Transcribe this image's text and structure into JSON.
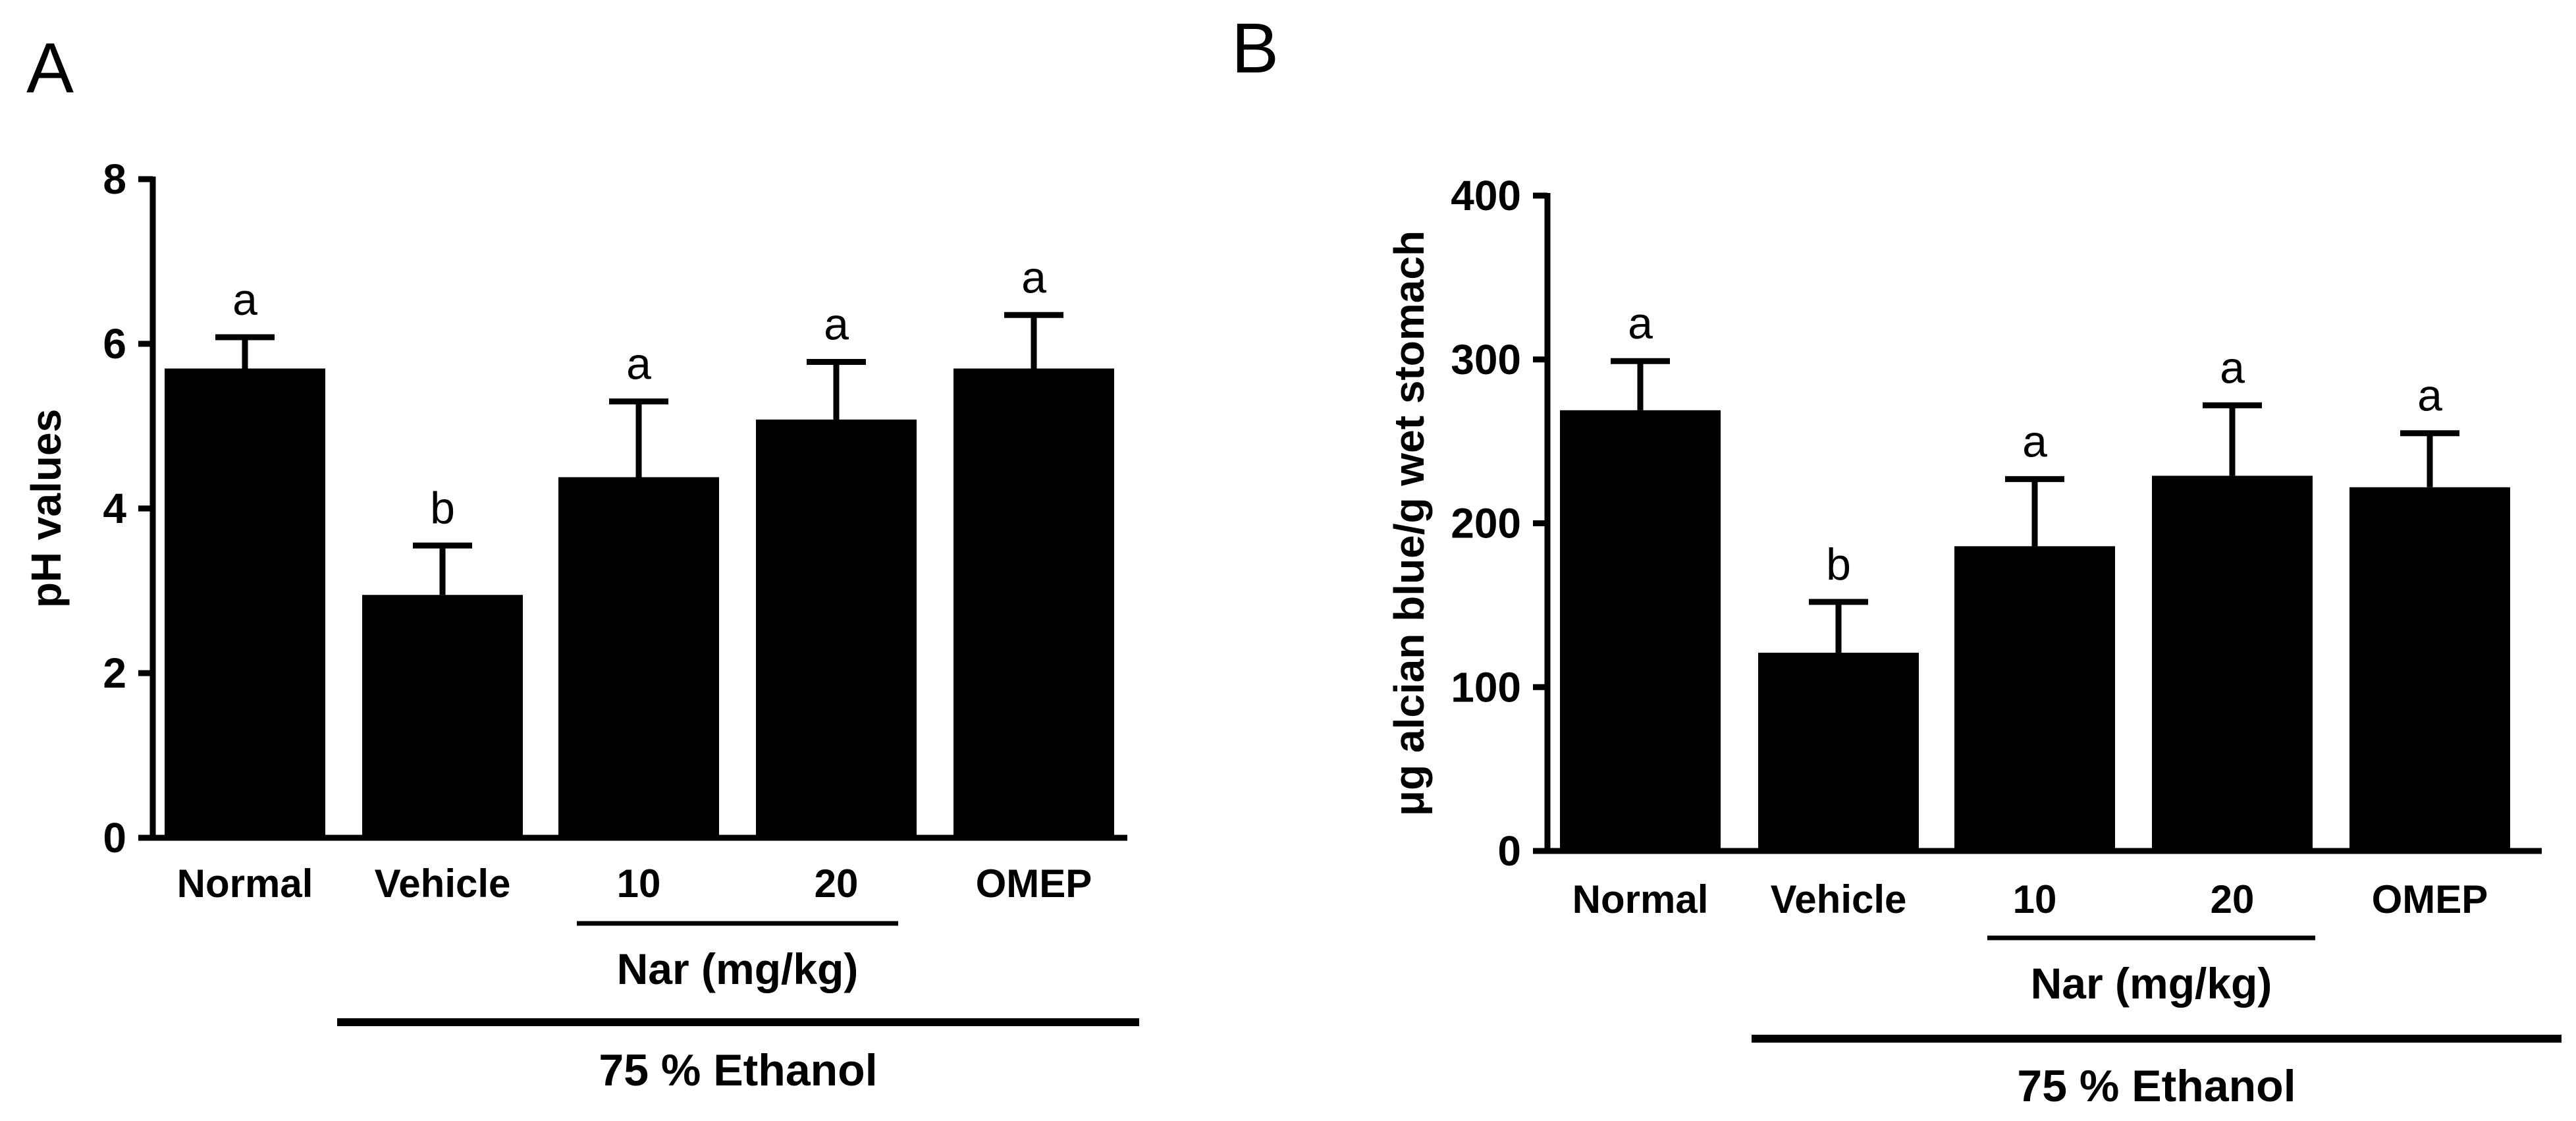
{
  "chart_data": [
    {
      "panel_label": "A",
      "type": "bar",
      "ylabel": "pH values",
      "ylim": [
        0,
        8
      ],
      "yticks": [
        "0",
        "2",
        "4",
        "6",
        "8"
      ],
      "categories": [
        "Normal",
        "Vehicle",
        "10",
        "20",
        "OMEP"
      ],
      "values": [
        5.7,
        2.95,
        4.38,
        5.08,
        5.7
      ],
      "errors": [
        0.38,
        0.6,
        0.92,
        0.7,
        0.65
      ],
      "significance": [
        "a",
        "b",
        "a",
        "a",
        "a"
      ],
      "group_label": "Nar (mg/kg)",
      "treatment_label": "75 % Ethanol",
      "bar_color": "#000000"
    },
    {
      "panel_label": "B",
      "type": "bar",
      "ylabel": "μg alcian blue/g wet stomach",
      "ylim": [
        0,
        400
      ],
      "yticks": [
        "0",
        "100",
        "200",
        "300",
        "400"
      ],
      "categories": [
        "Normal",
        "Vehicle",
        "10",
        "20",
        "OMEP"
      ],
      "values": [
        269,
        121,
        186,
        229,
        222
      ],
      "errors": [
        30,
        31,
        41,
        43,
        33
      ],
      "significance": [
        "a",
        "b",
        "a",
        "a",
        "a"
      ],
      "group_label": "Nar (mg/kg)",
      "treatment_label": "75 % Ethanol",
      "bar_color": "#000000"
    }
  ]
}
